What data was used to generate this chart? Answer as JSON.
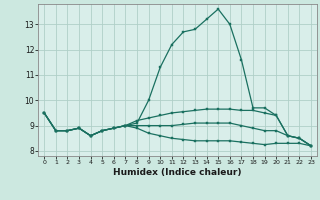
{
  "xlabel": "Humidex (Indice chaleur)",
  "xlim": [
    -0.5,
    23.5
  ],
  "ylim": [
    7.8,
    13.8
  ],
  "yticks": [
    8,
    9,
    10,
    11,
    12,
    13
  ],
  "xticks": [
    0,
    1,
    2,
    3,
    4,
    5,
    6,
    7,
    8,
    9,
    10,
    11,
    12,
    13,
    14,
    15,
    16,
    17,
    18,
    19,
    20,
    21,
    22,
    23
  ],
  "bg_color": "#cce8e0",
  "plot_bg": "#d9eeea",
  "line_color": "#1a7060",
  "grid_color": "#b0cfc8",
  "line1": [
    9.5,
    8.8,
    8.8,
    8.9,
    8.6,
    8.8,
    8.9,
    9.0,
    9.1,
    10.0,
    11.3,
    12.2,
    12.7,
    12.8,
    13.2,
    13.6,
    13.0,
    11.6,
    9.7,
    9.7,
    9.4,
    8.6,
    8.5,
    8.2
  ],
  "line2": [
    9.5,
    8.8,
    8.8,
    8.9,
    8.6,
    8.8,
    8.9,
    9.0,
    9.2,
    9.3,
    9.4,
    9.5,
    9.55,
    9.6,
    9.65,
    9.65,
    9.65,
    9.6,
    9.6,
    9.5,
    9.4,
    8.6,
    8.5,
    8.2
  ],
  "line3": [
    9.5,
    8.8,
    8.8,
    8.9,
    8.6,
    8.8,
    8.9,
    9.0,
    9.0,
    9.0,
    9.0,
    9.0,
    9.05,
    9.1,
    9.1,
    9.1,
    9.1,
    9.0,
    8.9,
    8.8,
    8.8,
    8.6,
    8.5,
    8.2
  ],
  "line4": [
    9.5,
    8.8,
    8.8,
    8.9,
    8.6,
    8.8,
    8.9,
    9.0,
    8.9,
    8.7,
    8.6,
    8.5,
    8.45,
    8.4,
    8.4,
    8.4,
    8.4,
    8.35,
    8.3,
    8.25,
    8.3,
    8.3,
    8.3,
    8.2
  ]
}
